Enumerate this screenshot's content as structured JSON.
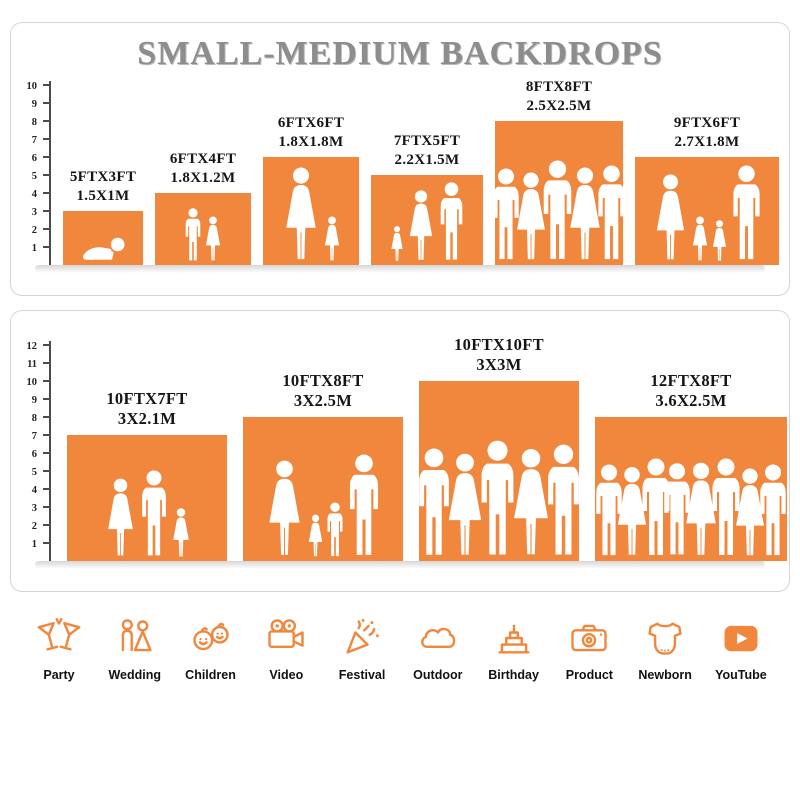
{
  "title": "SMALL-MEDIUM BACKDROPS",
  "colors": {
    "accent_orange": "#F0873C",
    "title_gray": "#8D8D8D"
  },
  "panels": [
    {
      "name": "small-backdrops",
      "ruler": [
        1,
        2,
        3,
        4,
        5,
        6,
        7,
        8,
        9,
        10
      ],
      "items": [
        {
          "size_ft": "5FTX3FT",
          "size_m": "1.5X1M"
        },
        {
          "size_ft": "6FTX4FT",
          "size_m": "1.8X1.2M"
        },
        {
          "size_ft": "6FTX6FT",
          "size_m": "1.8X1.8M"
        },
        {
          "size_ft": "7FTX5FT",
          "size_m": "2.2X1.5M"
        },
        {
          "size_ft": "8FTX8FT",
          "size_m": "2.5X2.5M"
        },
        {
          "size_ft": "9FTX6FT",
          "size_m": "2.7X1.8M"
        }
      ]
    },
    {
      "name": "medium-backdrops",
      "ruler": [
        1,
        2,
        3,
        4,
        5,
        6,
        7,
        8,
        9,
        10,
        11,
        12
      ],
      "items": [
        {
          "size_ft": "10FTX7FT",
          "size_m": "3X2.1M"
        },
        {
          "size_ft": "10FTX8FT",
          "size_m": "3X2.5M"
        },
        {
          "size_ft": "10FTX10FT",
          "size_m": "3X3M"
        },
        {
          "size_ft": "12FTX8FT",
          "size_m": "3.6X2.5M"
        }
      ]
    }
  ],
  "categories": [
    {
      "label": "Party",
      "icon": "party-drinks-icon"
    },
    {
      "label": "Wedding",
      "icon": "wedding-couple-icon"
    },
    {
      "label": "Children",
      "icon": "children-faces-icon"
    },
    {
      "label": "Video",
      "icon": "video-camera-icon"
    },
    {
      "label": "Festival",
      "icon": "festival-popper-icon"
    },
    {
      "label": "Outdoor",
      "icon": "cloud-icon"
    },
    {
      "label": "Birthday",
      "icon": "birthday-cake-icon"
    },
    {
      "label": "Product",
      "icon": "photo-camera-icon"
    },
    {
      "label": "Newborn",
      "icon": "baby-onesie-icon"
    },
    {
      "label": "YouTube",
      "icon": "youtube-play-icon"
    }
  ]
}
